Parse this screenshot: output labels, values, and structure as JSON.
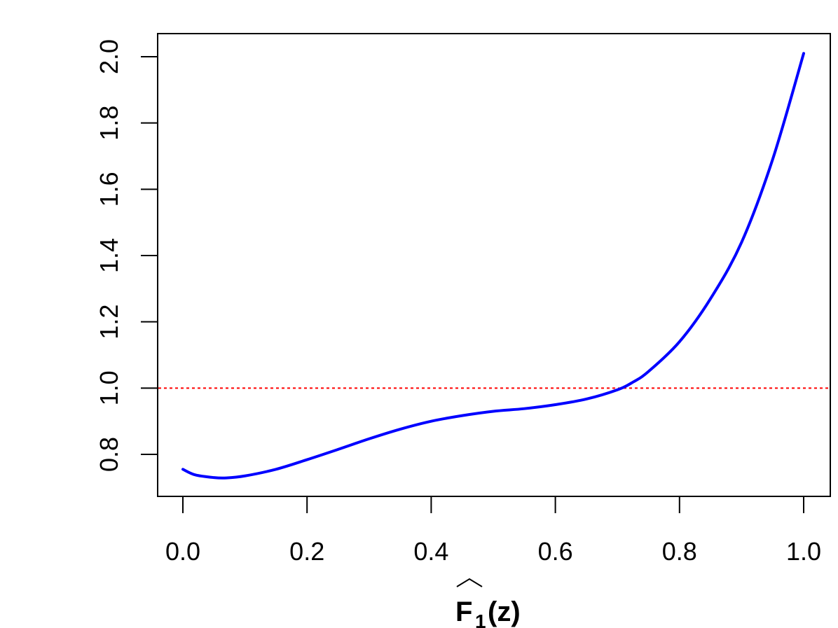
{
  "chart_data": {
    "type": "line",
    "title": "",
    "xlabel": "F̂1(z)",
    "xlabel_parts": {
      "base": "F",
      "subscript": "1",
      "suffix": "(z)",
      "hat": true
    },
    "ylabel": "",
    "xlim": [
      0.0,
      1.0
    ],
    "ylim": [
      0.7,
      2.02
    ],
    "x_ticks": [
      "0.0",
      "0.2",
      "0.4",
      "0.6",
      "0.8",
      "1.0"
    ],
    "y_ticks": [
      "0.8",
      "1.0",
      "1.2",
      "1.4",
      "1.6",
      "1.8",
      "2.0"
    ],
    "grid": false,
    "legend": "none",
    "series": [
      {
        "color": "#0000ff",
        "style": "solid",
        "x": [
          0.0,
          0.02,
          0.05,
          0.07,
          0.1,
          0.15,
          0.2,
          0.25,
          0.3,
          0.35,
          0.4,
          0.45,
          0.5,
          0.55,
          0.6,
          0.65,
          0.7,
          0.725,
          0.75,
          0.8,
          0.85,
          0.9,
          0.95,
          1.0
        ],
        "y": [
          0.755,
          0.738,
          0.73,
          0.729,
          0.735,
          0.755,
          0.784,
          0.815,
          0.847,
          0.876,
          0.9,
          0.917,
          0.93,
          0.938,
          0.95,
          0.967,
          0.995,
          1.018,
          1.05,
          1.14,
          1.27,
          1.44,
          1.69,
          2.01
        ]
      }
    ],
    "reference_lines": [
      {
        "y": 1.0,
        "color": "#ff0000",
        "style": "dotted"
      }
    ]
  }
}
